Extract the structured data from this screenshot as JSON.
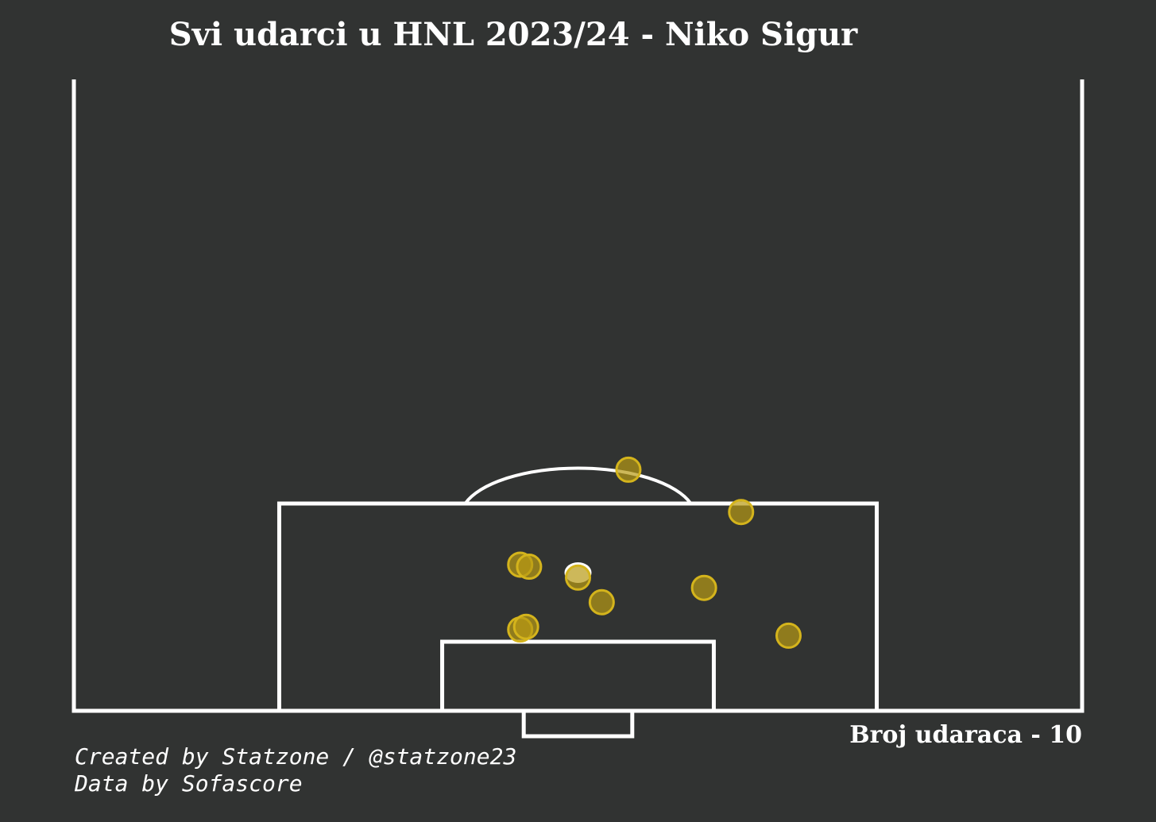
{
  "title": "Svi udarci u HNL 2023/24 - Niko Sigur",
  "shot_count_label": "Broj udaraca - 10",
  "credits": {
    "line1": "Created by Statzone / @statzone23",
    "line2": "Data by Sofascore"
  },
  "colors": {
    "background": "#313332",
    "lines": "#ffffff",
    "shot_fill": "#b89a14",
    "shot_stroke": "#d4b41c"
  },
  "chart_data": {
    "type": "scatter",
    "pitch": "half-vertical",
    "total_shots": 10,
    "shots": [
      {
        "x": 30.1,
        "y": 21.4
      },
      {
        "x": 30.7,
        "y": 21.1
      },
      {
        "x": 30.1,
        "y": 11.9
      },
      {
        "x": 30.5,
        "y": 12.3
      },
      {
        "x": 35.6,
        "y": 15.9
      },
      {
        "x": 34.0,
        "y": 19.5
      },
      {
        "x": 37.4,
        "y": 35.3
      },
      {
        "x": 42.5,
        "y": 18.0
      },
      {
        "x": 45.0,
        "y": 29.1
      },
      {
        "x": 48.2,
        "y": 11.0
      }
    ]
  }
}
